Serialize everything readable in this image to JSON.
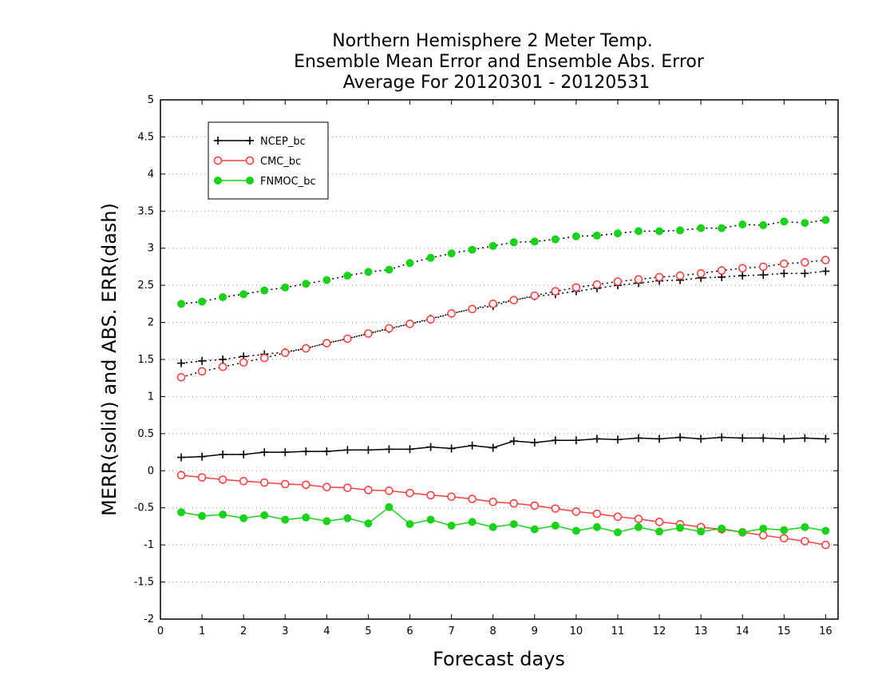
{
  "chart_data": {
    "type": "line",
    "title_lines": [
      "Northern Hemisphere 2 Meter Temp.",
      "Ensemble Mean Error and Ensemble Abs. Error",
      "Average For 20120301 - 20120531"
    ],
    "xlabel": "Forecast days",
    "ylabel": "MERR(solid) and ABS. ERR(dash)",
    "xlim": [
      0,
      16.3
    ],
    "ylim": [
      -2,
      5
    ],
    "x_ticks": [
      0,
      1,
      2,
      3,
      4,
      5,
      6,
      7,
      8,
      9,
      10,
      11,
      12,
      13,
      14,
      15,
      16
    ],
    "y_ticks": [
      5,
      4.5,
      4,
      3.5,
      3,
      2.5,
      2,
      1.5,
      1,
      0.5,
      0,
      -0.5,
      -1,
      -1.5,
      -2
    ],
    "y_tick_labels": [
      "5",
      "4.5",
      "4",
      "3.5",
      "3",
      "2.5",
      "2",
      "1.5",
      "1",
      "0.5",
      "0",
      "-0.5",
      "-1",
      "-1.5",
      "-2"
    ],
    "grid": {
      "horizontal": true,
      "style": "dotted"
    },
    "legend_position": "top-left",
    "x": [
      0.5,
      1,
      1.5,
      2,
      2.5,
      3,
      3.5,
      4,
      4.5,
      5,
      5.5,
      6,
      6.5,
      7,
      7.5,
      8,
      8.5,
      9,
      9.5,
      10,
      10.5,
      11,
      11.5,
      12,
      12.5,
      13,
      13.5,
      14,
      14.5,
      15,
      15.5,
      16
    ],
    "series": [
      {
        "name": "NCEP_bc",
        "color": "#000000",
        "marker": "plus",
        "legend_marker": "plus",
        "mean_error": [
          0.18,
          0.19,
          0.22,
          0.22,
          0.25,
          0.25,
          0.26,
          0.26,
          0.28,
          0.28,
          0.29,
          0.29,
          0.32,
          0.3,
          0.34,
          0.31,
          0.4,
          0.38,
          0.41,
          0.41,
          0.43,
          0.42,
          0.44,
          0.43,
          0.45,
          0.43,
          0.45,
          0.44,
          0.44,
          0.43,
          0.44,
          0.43
        ],
        "abs_error": [
          1.45,
          1.48,
          1.5,
          1.54,
          1.57,
          1.6,
          1.65,
          1.72,
          1.78,
          1.85,
          1.91,
          1.98,
          2.05,
          2.12,
          2.18,
          2.22,
          2.3,
          2.35,
          2.38,
          2.42,
          2.46,
          2.5,
          2.53,
          2.56,
          2.57,
          2.6,
          2.61,
          2.63,
          2.64,
          2.66,
          2.66,
          2.69
        ]
      },
      {
        "name": "CMC_bc",
        "color": "#ff4040",
        "marker": "open-circle",
        "legend_marker": "open-circle",
        "mean_error": [
          -0.06,
          -0.09,
          -0.12,
          -0.14,
          -0.16,
          -0.18,
          -0.19,
          -0.22,
          -0.23,
          -0.26,
          -0.27,
          -0.3,
          -0.33,
          -0.35,
          -0.38,
          -0.42,
          -0.44,
          -0.47,
          -0.51,
          -0.55,
          -0.58,
          -0.62,
          -0.65,
          -0.69,
          -0.72,
          -0.76,
          -0.79,
          -0.83,
          -0.87,
          -0.91,
          -0.95,
          -1.0
        ],
        "abs_error": [
          1.26,
          1.34,
          1.4,
          1.46,
          1.52,
          1.59,
          1.65,
          1.72,
          1.78,
          1.85,
          1.92,
          1.98,
          2.04,
          2.12,
          2.18,
          2.25,
          2.3,
          2.36,
          2.42,
          2.47,
          2.51,
          2.55,
          2.58,
          2.61,
          2.63,
          2.66,
          2.7,
          2.73,
          2.75,
          2.79,
          2.81,
          2.84
        ]
      },
      {
        "name": "FNMOC_bc",
        "color": "#19d219",
        "marker": "filled-circle",
        "legend_marker": "filled-circle",
        "mean_error": [
          -0.56,
          -0.61,
          -0.59,
          -0.64,
          -0.6,
          -0.66,
          -0.63,
          -0.68,
          -0.64,
          -0.71,
          -0.49,
          -0.72,
          -0.66,
          -0.74,
          -0.69,
          -0.76,
          -0.72,
          -0.79,
          -0.74,
          -0.81,
          -0.76,
          -0.83,
          -0.76,
          -0.82,
          -0.77,
          -0.82,
          -0.78,
          -0.83,
          -0.78,
          -0.8,
          -0.76,
          -0.81
        ],
        "abs_error": [
          2.25,
          2.28,
          2.34,
          2.38,
          2.43,
          2.47,
          2.52,
          2.57,
          2.63,
          2.68,
          2.71,
          2.8,
          2.87,
          2.93,
          2.98,
          3.03,
          3.08,
          3.09,
          3.12,
          3.16,
          3.17,
          3.2,
          3.23,
          3.23,
          3.24,
          3.27,
          3.27,
          3.32,
          3.31,
          3.36,
          3.34,
          3.38
        ]
      }
    ]
  }
}
